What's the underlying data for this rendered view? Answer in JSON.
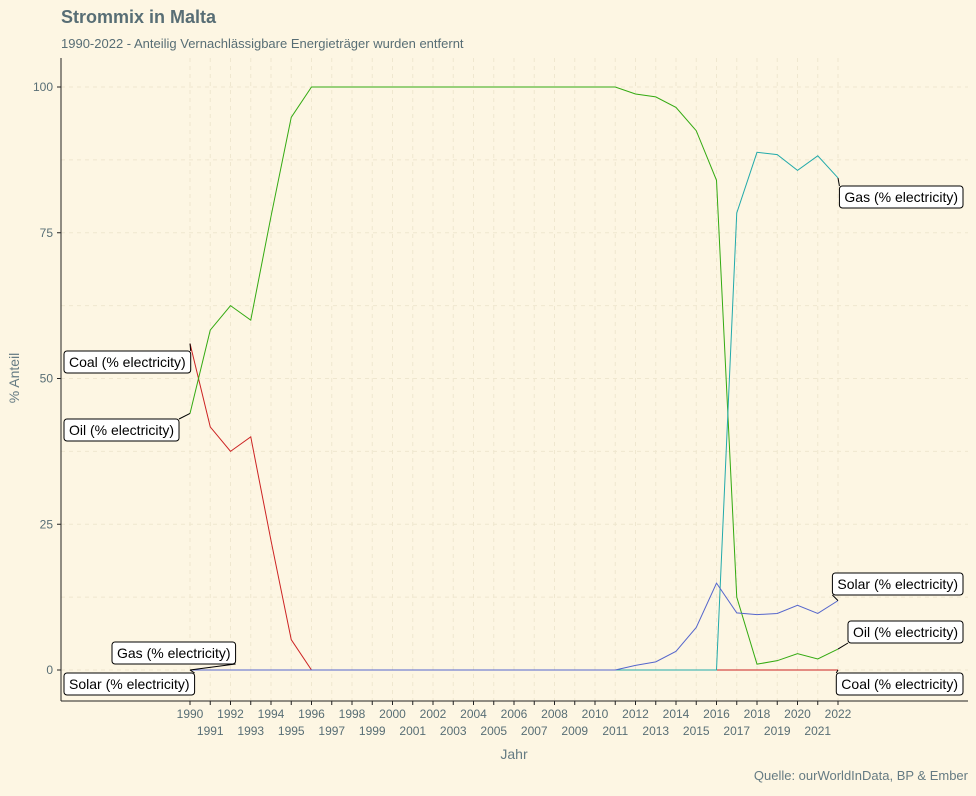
{
  "chart_data": {
    "type": "line",
    "title": "Strommix in Malta",
    "subtitle": "1990-2022 - Anteilig Vernachlässigbare Energieträger wurden entfernt",
    "caption": "Quelle: ourWorldInData, BP & Ember",
    "xlabel": "Jahr",
    "ylabel": "% Anteil",
    "xlim": [
      1990,
      2022
    ],
    "ylim": [
      0,
      100
    ],
    "yticks": [
      0,
      25,
      50,
      75,
      100
    ],
    "xticks": [
      1990,
      1991,
      1992,
      1993,
      1994,
      1995,
      1996,
      1997,
      1998,
      1999,
      2000,
      2001,
      2002,
      2003,
      2004,
      2005,
      2006,
      2007,
      2008,
      2009,
      2010,
      2011,
      2012,
      2013,
      2014,
      2015,
      2016,
      2017,
      2018,
      2019,
      2020,
      2021,
      2022
    ],
    "grid": true,
    "x": [
      1990,
      1991,
      1992,
      1993,
      1994,
      1995,
      1996,
      1997,
      1998,
      1999,
      2000,
      2001,
      2002,
      2003,
      2004,
      2005,
      2006,
      2007,
      2008,
      2009,
      2010,
      2011,
      2012,
      2013,
      2014,
      2015,
      2016,
      2017,
      2018,
      2019,
      2020,
      2021,
      2022
    ],
    "series": [
      {
        "name": "Coal (% electricity)",
        "color": "#cc2222",
        "values": [
          56,
          41.7,
          37.5,
          40,
          22.2,
          5.2,
          0,
          0,
          0,
          0,
          0,
          0,
          0,
          0,
          0,
          0,
          0,
          0,
          0,
          0,
          0,
          0,
          0,
          0,
          0,
          0,
          0,
          0,
          0,
          0,
          0,
          0,
          0
        ]
      },
      {
        "name": "Oil (% electricity)",
        "color": "#33aa11",
        "values": [
          44,
          58.3,
          62.5,
          60,
          77.8,
          94.8,
          100,
          100,
          100,
          100,
          100,
          100,
          100,
          100,
          100,
          100,
          100,
          100,
          100,
          100,
          100,
          100,
          98.8,
          98.3,
          96.5,
          92.5,
          84,
          12.5,
          1,
          1.6,
          2.8,
          1.9,
          3.6
        ]
      },
      {
        "name": "Gas (% electricity)",
        "color": "#22aaaa",
        "values": [
          0,
          0,
          0,
          0,
          0,
          0,
          0,
          0,
          0,
          0,
          0,
          0,
          0,
          0,
          0,
          0,
          0,
          0,
          0,
          0,
          0,
          0,
          0,
          0,
          0,
          0,
          0,
          78.4,
          88.8,
          88.4,
          85.7,
          88.2,
          84.4
        ]
      },
      {
        "name": "Solar (% electricity)",
        "color": "#5566cc",
        "values": [
          0,
          0,
          0,
          0,
          0,
          0,
          0,
          0,
          0,
          0,
          0,
          0,
          0,
          0,
          0,
          0,
          0,
          0,
          0,
          0,
          0,
          0,
          0.8,
          1.4,
          3.2,
          7.3,
          14.9,
          9.8,
          9.5,
          9.7,
          11.1,
          9.7,
          11.9
        ]
      }
    ],
    "labels_left": [
      {
        "series": "Coal (% electricity)",
        "text": "Coal (% electricity)"
      },
      {
        "series": "Oil (% electricity)",
        "text": "Oil (% electricity)"
      },
      {
        "series": "Gas (% electricity)",
        "text": "Gas (% electricity)"
      },
      {
        "series": "Solar (% electricity)",
        "text": "Solar (% electricity)"
      }
    ],
    "labels_right": [
      {
        "series": "Gas (% electricity)",
        "text": "Gas (% electricity)"
      },
      {
        "series": "Solar (% electricity)",
        "text": "Solar (% electricity)"
      },
      {
        "series": "Oil (% electricity)",
        "text": "Oil (% electricity)"
      },
      {
        "series": "Coal (% electricity)",
        "text": "Coal (% electricity)"
      }
    ]
  }
}
